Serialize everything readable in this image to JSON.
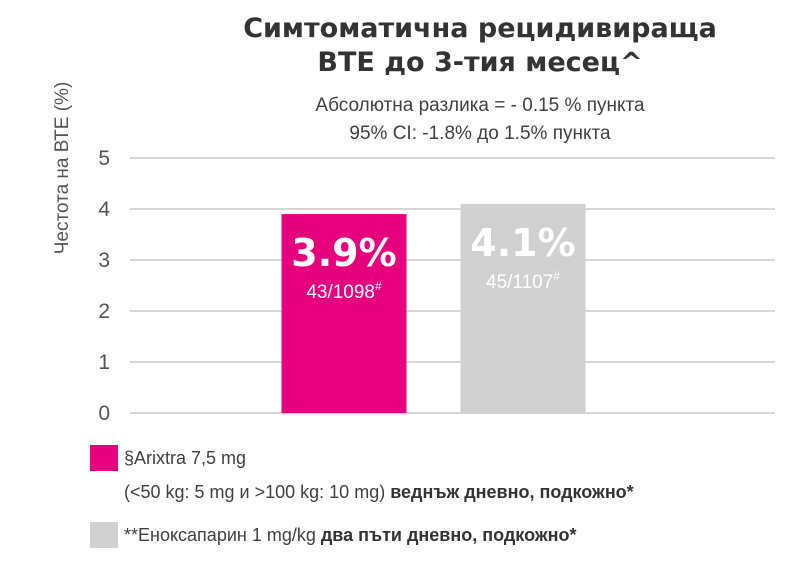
{
  "chart_data": {
    "type": "bar",
    "title": [
      "Симтоматична рецидивираща",
      "ВТЕ до 3-тия месец^"
    ],
    "subtitle": [
      "Абсолютна разлика = - 0.15 % пункта",
      "95% CI: -1.8% до 1.5% пункта"
    ],
    "ylabel": "Честота на ВТЕ (%)",
    "ylim": [
      0,
      5
    ],
    "yticks": [
      "0",
      "1",
      "2",
      "3",
      "4",
      "5"
    ],
    "grid": true,
    "categories": [
      "§Arixtra 7,5 mg",
      "**Еноксапарин 1 mg/kg"
    ],
    "values": [
      3.9,
      4.1
    ],
    "value_labels": [
      "3.9%",
      "4.1%"
    ],
    "count_labels": [
      "43/1098",
      "45/1107"
    ],
    "count_suffix": [
      "#",
      "#"
    ],
    "colors": [
      "#e6007e",
      "#d0d0d0"
    ],
    "legend": [
      {
        "name": "§Arixtra 7,5 mg",
        "detail": "(<50 kg: 5 mg и >100 kg: 10 mg) ",
        "detail_bold": "веднъж дневно, подкожно*",
        "color": "#e6007e"
      },
      {
        "name": "**Еноксапарин 1 mg/kg ",
        "detail_bold": "два пъти дневно, подкожно*",
        "color": "#d0d0d0"
      }
    ],
    "legend_position": "bottom-left"
  }
}
